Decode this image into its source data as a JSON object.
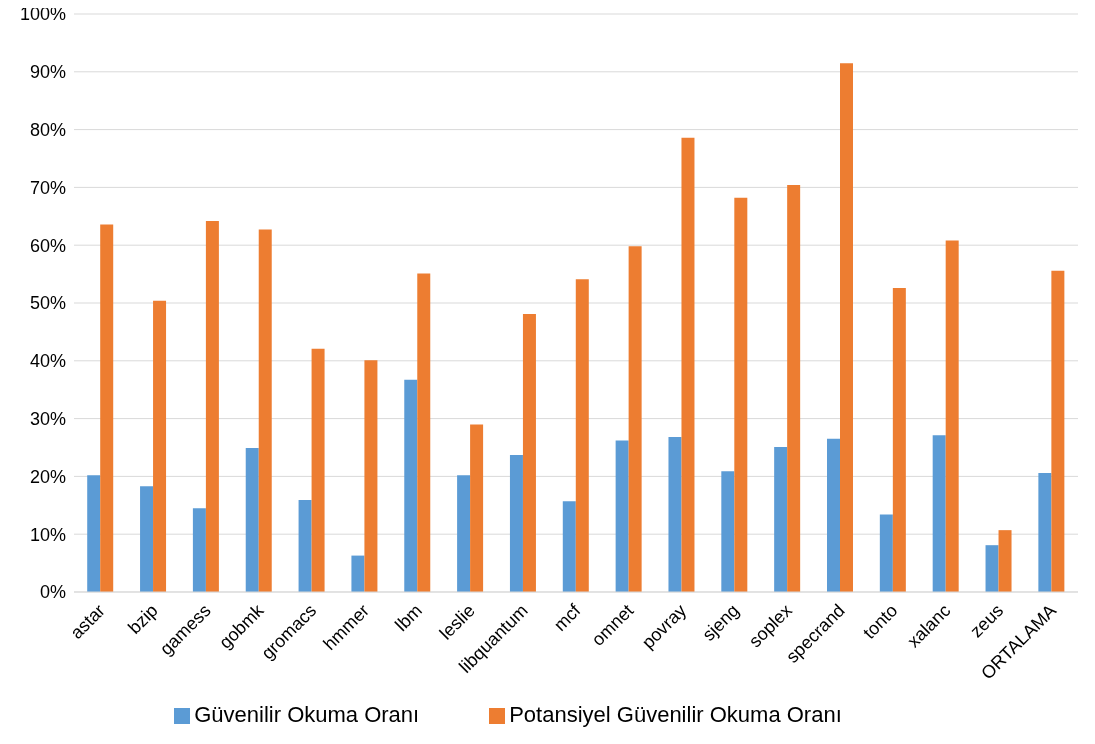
{
  "chart_data": {
    "type": "bar",
    "categories": [
      "astar",
      "bzip",
      "gamess",
      "gobmk",
      "gromacs",
      "hmmer",
      "lbm",
      "leslie",
      "libquantum",
      "mcf",
      "omnet",
      "povray",
      "sjeng",
      "soplex",
      "specrand",
      "tonto",
      "xalanc",
      "zeus",
      "ORTALAMA"
    ],
    "series": [
      {
        "name": "Güvenilir Okuma Oranı",
        "color": "#5b9bd5",
        "values": [
          20.2,
          18.3,
          14.5,
          24.9,
          15.9,
          6.3,
          36.7,
          20.2,
          23.7,
          15.7,
          26.2,
          26.8,
          20.9,
          25.1,
          26.5,
          13.4,
          27.1,
          8.1,
          20.6
        ]
      },
      {
        "name": "Potansiyel Güvenilir Okuma Oranı",
        "color": "#ed7d31",
        "values": [
          63.6,
          50.4,
          64.2,
          62.7,
          42.1,
          40.1,
          55.1,
          29.0,
          48.1,
          54.1,
          59.8,
          78.6,
          68.2,
          70.4,
          91.5,
          52.6,
          60.8,
          10.7,
          55.6
        ]
      }
    ],
    "ylim": [
      0,
      100
    ],
    "yticks": [
      {
        "value": 0,
        "label": "0%"
      },
      {
        "value": 10,
        "label": "10%"
      },
      {
        "value": 20,
        "label": "20%"
      },
      {
        "value": 30,
        "label": "30%"
      },
      {
        "value": 40,
        "label": "40%"
      },
      {
        "value": 50,
        "label": "50%"
      },
      {
        "value": 60,
        "label": "60%"
      },
      {
        "value": 70,
        "label": "70%"
      },
      {
        "value": 80,
        "label": "80%"
      },
      {
        "value": 90,
        "label": "90%"
      },
      {
        "value": 100,
        "label": "100%"
      }
    ],
    "grid": "y",
    "legend": "bottom"
  }
}
